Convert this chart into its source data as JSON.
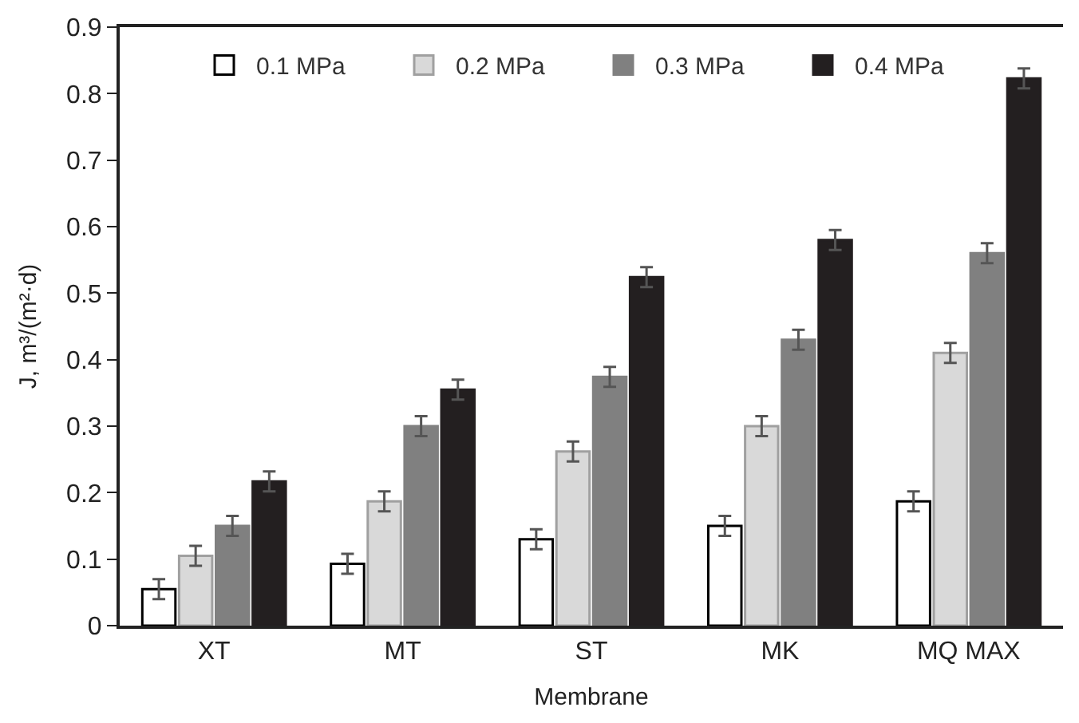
{
  "chart_data": {
    "type": "bar",
    "xlabel": "Membrane",
    "ylabel": "J, m³/(m²·d)",
    "categories": [
      "XT",
      "MT",
      "ST",
      "MK",
      "MQ MAX"
    ],
    "series": [
      {
        "name": "0.1 MPa",
        "color": "#ffffff",
        "values": [
          0.055,
          0.093,
          0.13,
          0.15,
          0.187
        ],
        "errors": [
          0.015,
          0.015,
          0.015,
          0.015,
          0.015
        ]
      },
      {
        "name": "0.2 MPa",
        "color": "#d9d9d9",
        "values": [
          0.105,
          0.187,
          0.262,
          0.3,
          0.41
        ],
        "errors": [
          0.015,
          0.015,
          0.015,
          0.015,
          0.015
        ]
      },
      {
        "name": "0.3 MPa",
        "color": "#808080",
        "values": [
          0.15,
          0.3,
          0.374,
          0.43,
          0.56
        ],
        "errors": [
          0.015,
          0.015,
          0.015,
          0.015,
          0.015
        ]
      },
      {
        "name": "0.4 MPa",
        "color": "#231f20",
        "values": [
          0.217,
          0.355,
          0.524,
          0.58,
          0.823
        ],
        "errors": [
          0.015,
          0.015,
          0.015,
          0.015,
          0.015
        ]
      }
    ],
    "ylim": [
      0,
      0.9
    ],
    "yticks": [
      {
        "value": 0,
        "label": "0"
      },
      0.1,
      0.2,
      0.3,
      0.4,
      0.5,
      0.6,
      0.7,
      0.8,
      0.9
    ],
    "legend": "top"
  }
}
